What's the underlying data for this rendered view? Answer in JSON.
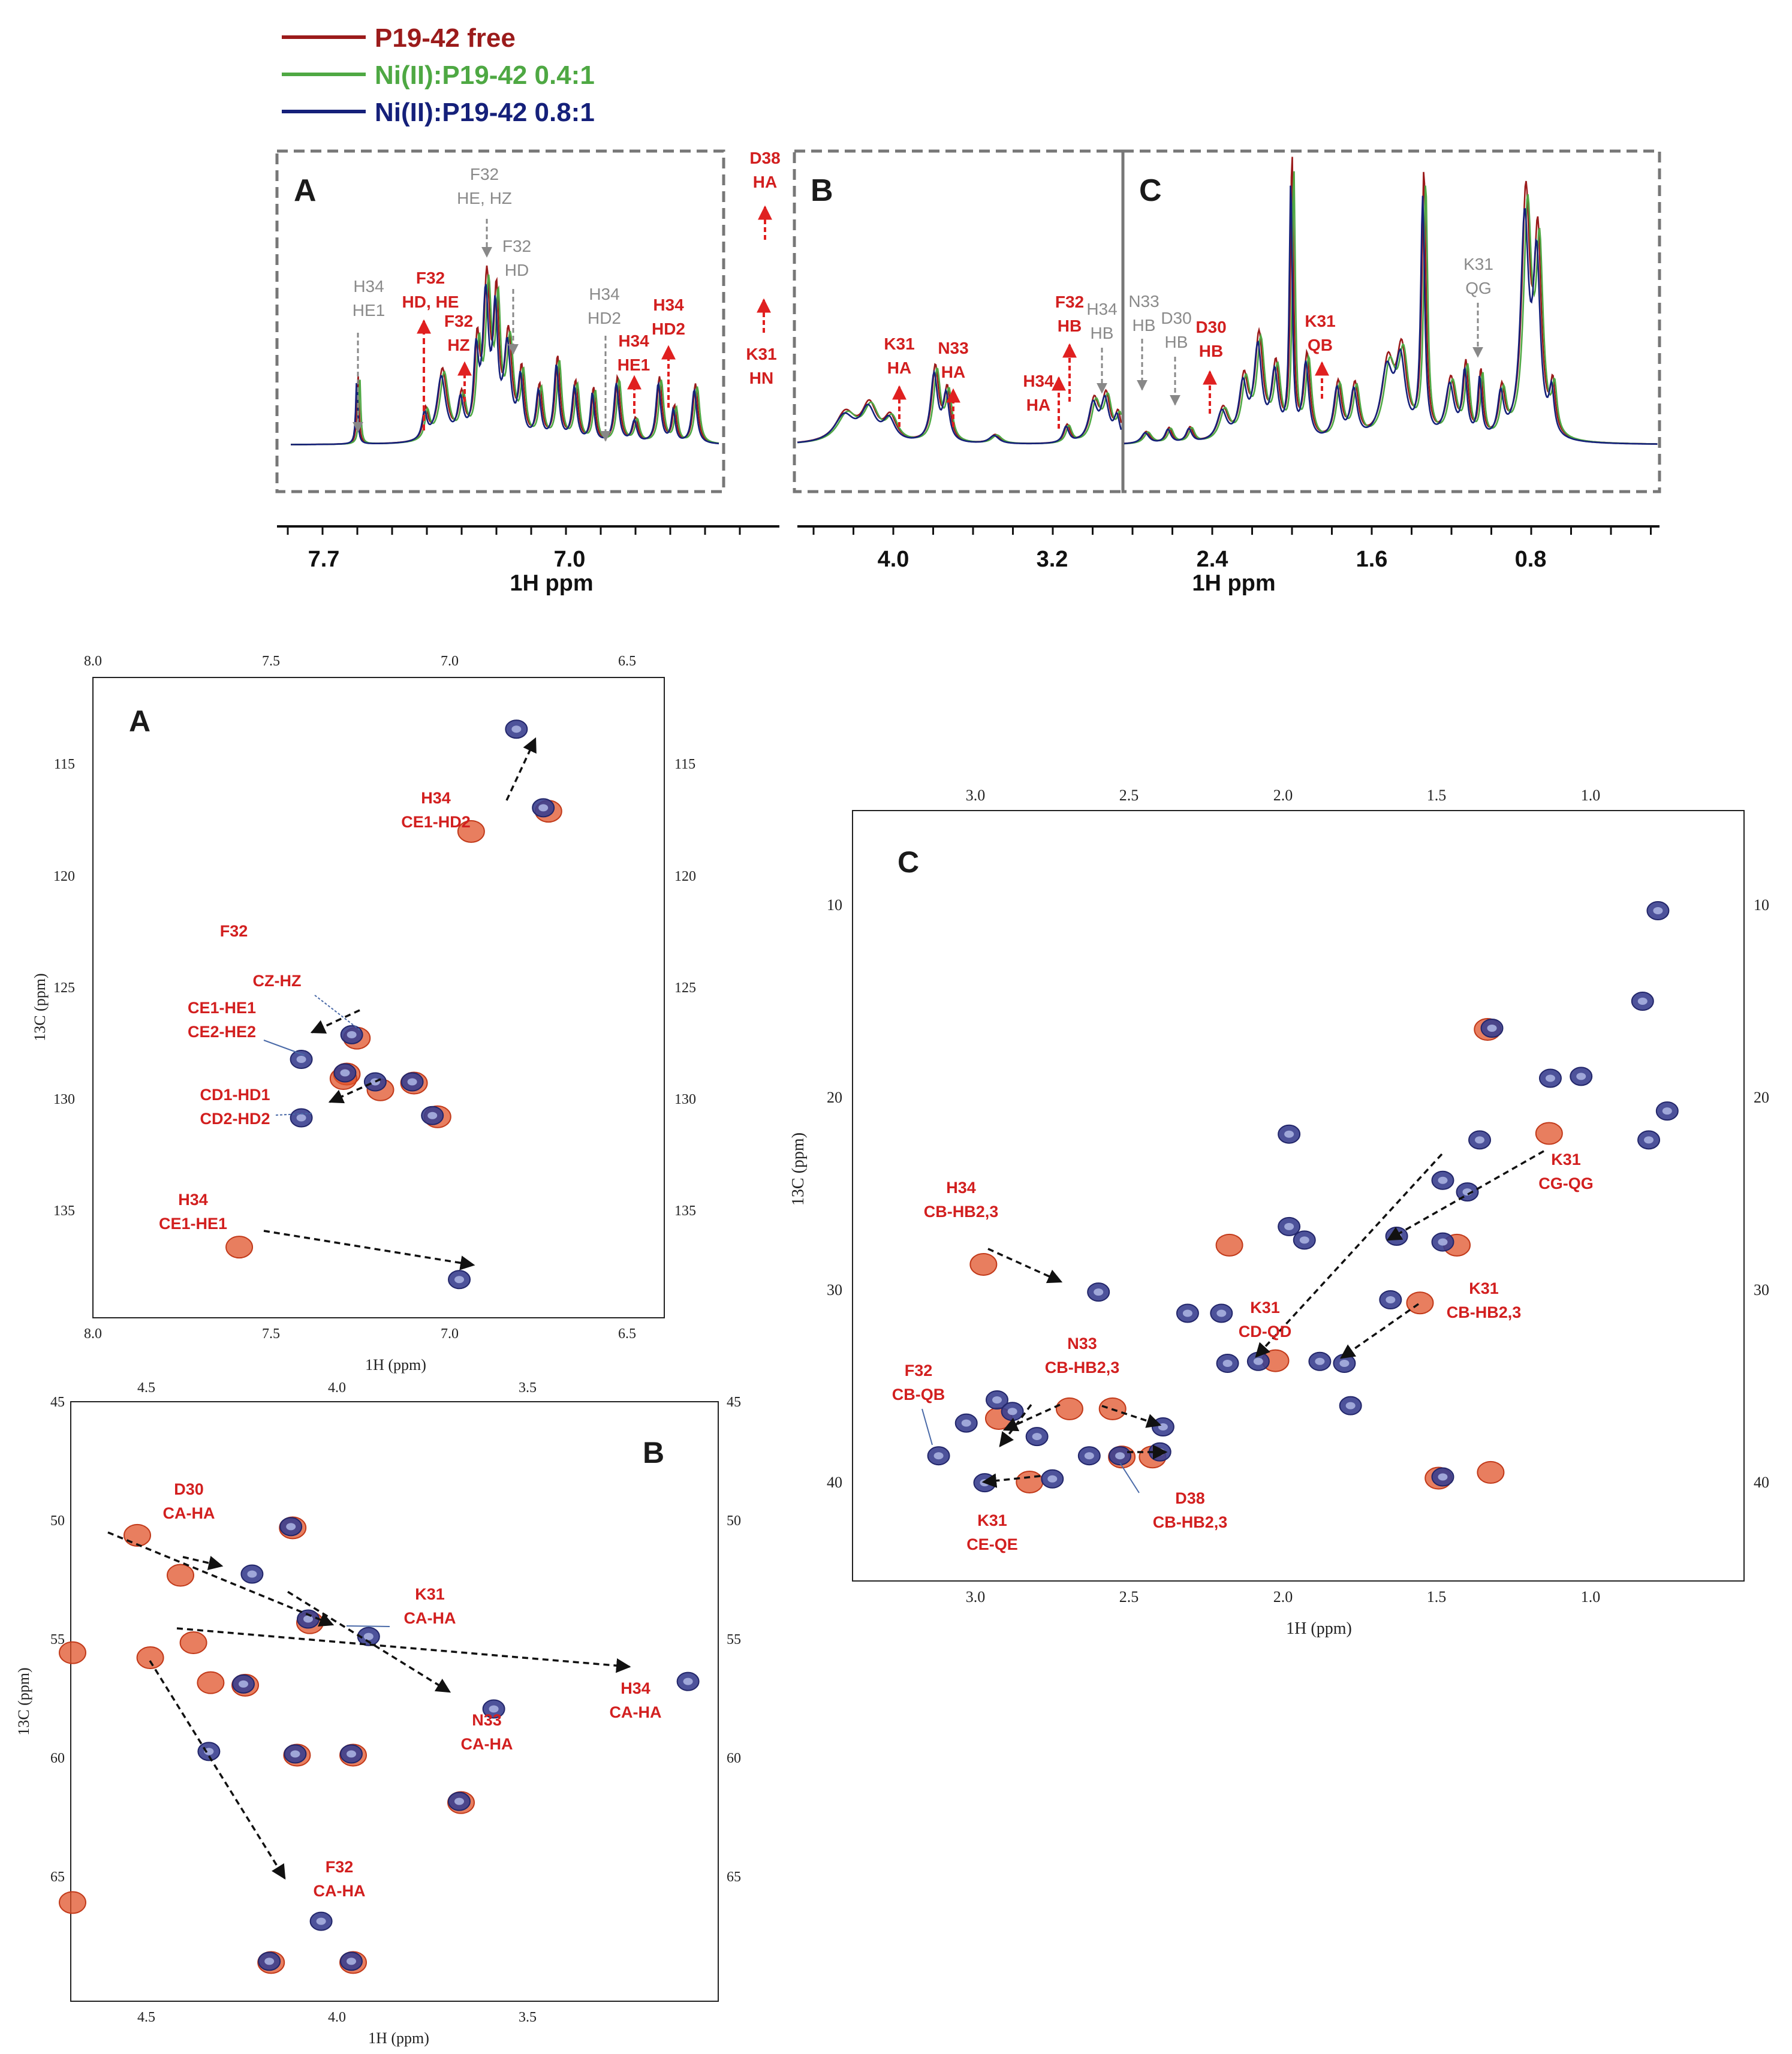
{
  "legend": [
    {
      "name": "P19-42 free",
      "color": "#9b1b1b"
    },
    {
      "name": "Ni(II):P19-42 0.4:1",
      "color": "#4ea843"
    },
    {
      "name": "Ni(II):P19-42 0.8:1",
      "color": "#15207a"
    }
  ],
  "colors": {
    "free_contour": "#e0532a",
    "bound_contour": "#3a3f8f",
    "label_red": "#d21f1f",
    "label_grey": "#8a8a8a"
  },
  "chart_data": [
    {
      "type": "line",
      "panel": "1D 1H spectrum",
      "xlabel": "1H ppm",
      "xticks_left": [
        "7.7",
        "7.0"
      ],
      "xticks_right": [
        "4.0",
        "3.2",
        "2.4",
        "1.6",
        "0.8"
      ],
      "regions": [
        "A",
        "B",
        "C"
      ],
      "annotations": [
        {
          "text": [
            "H34",
            "HE1"
          ],
          "color": "grey",
          "x": 7.62
        },
        {
          "text": [
            "F32",
            "HE, HZ"
          ],
          "color": "grey",
          "x": 7.25
        },
        {
          "text": [
            "F32",
            "HD"
          ],
          "color": "grey",
          "x": 7.15
        },
        {
          "text": [
            "H34",
            "HD2"
          ],
          "color": "grey",
          "x": 6.86
        },
        {
          "text": [
            "F32",
            "HD, HE"
          ],
          "color": "red",
          "x": 7.45
        },
        {
          "text": [
            "F32",
            "HZ"
          ],
          "color": "red",
          "x": 7.37
        },
        {
          "text": [
            "H34",
            "HE1"
          ],
          "color": "red",
          "x": 6.8
        },
        {
          "text": [
            "H34",
            "HD2"
          ],
          "color": "red",
          "x": 6.72
        },
        {
          "text": [
            "D38",
            "HA"
          ],
          "color": "red",
          "x": 6.45
        },
        {
          "text": [
            "K31",
            "HN"
          ],
          "color": "red",
          "x": 6.45
        },
        {
          "text": [
            "K31",
            "HA"
          ],
          "color": "red",
          "x": 3.98
        },
        {
          "text": [
            "N33",
            "HA"
          ],
          "color": "red",
          "x": 3.7
        },
        {
          "text": [
            "H34",
            "HA"
          ],
          "color": "red",
          "x": 3.15
        },
        {
          "text": [
            "F32",
            "HB"
          ],
          "color": "red",
          "x": 3.1
        },
        {
          "text": [
            "H34",
            "HB"
          ],
          "color": "grey",
          "x": 2.95
        },
        {
          "text": [
            "N33",
            "HB"
          ],
          "color": "grey",
          "x": 2.72
        },
        {
          "text": [
            "D30",
            "HB"
          ],
          "color": "grey",
          "x": 2.55
        },
        {
          "text": [
            "D30",
            "HB"
          ],
          "color": "red",
          "x": 2.4
        },
        {
          "text": [
            "K31",
            "QB"
          ],
          "color": "red",
          "x": 1.78
        },
        {
          "text": [
            "K31",
            "QG"
          ],
          "color": "grey",
          "x": 1.02
        }
      ]
    },
    {
      "type": "scatter",
      "panel": "A",
      "xlabel": "1H (ppm)",
      "ylabel": "13C (ppm)",
      "xlim": [
        8.0,
        6.3
      ],
      "ylim": [
        111.0,
        139.5
      ],
      "xticks": [
        "8.0",
        "7.5",
        "7.0",
        "6.5"
      ],
      "yticks": [
        "115",
        "120",
        "125",
        "130",
        "135"
      ],
      "labels": [
        {
          "lines": [
            "H34",
            "CE1-HD2"
          ]
        },
        {
          "lines": [
            "F32"
          ]
        },
        {
          "lines": [
            "CZ-HZ"
          ]
        },
        {
          "lines": [
            "CE1-HE1",
            "CE2-HE2"
          ]
        },
        {
          "lines": [
            "CD1-HD1",
            "CD2-HD2"
          ]
        },
        {
          "lines": [
            "H34",
            "CE1-HE1"
          ]
        }
      ],
      "peaks_free": [
        [
          6.88,
          117.8
        ],
        [
          6.65,
          116.9
        ],
        [
          7.22,
          127.0
        ],
        [
          7.25,
          128.6
        ],
        [
          7.15,
          129.3
        ],
        [
          7.05,
          129.0
        ],
        [
          6.98,
          130.5
        ],
        [
          7.57,
          136.3
        ],
        [
          7.26,
          128.8
        ]
      ],
      "peaks_bound": [
        [
          6.74,
          113.3
        ],
        [
          6.66,
          116.8
        ],
        [
          7.23,
          126.9
        ],
        [
          7.38,
          128.0
        ],
        [
          7.25,
          128.6
        ],
        [
          7.16,
          129.0
        ],
        [
          7.05,
          129.0
        ],
        [
          6.99,
          130.5
        ],
        [
          7.38,
          130.6
        ],
        [
          6.91,
          137.8
        ]
      ]
    },
    {
      "type": "scatter",
      "panel": "B",
      "xlabel": "1H (ppm)",
      "ylabel": "13C (ppm)",
      "xlim": [
        4.7,
        3.2
      ],
      "ylim": [
        45,
        69
      ],
      "xticks": [
        "4.5",
        "4.0",
        "3.5"
      ],
      "yticks": [
        "45",
        "50",
        "55",
        "60",
        "65"
      ],
      "labels": [
        {
          "lines": [
            "D30",
            "CA-HA"
          ]
        },
        {
          "lines": [
            "K31",
            "CA-HA"
          ]
        },
        {
          "lines": [
            "H34",
            "CA-HA"
          ]
        },
        {
          "lines": [
            "N33",
            "CA-HA"
          ]
        },
        {
          "lines": [
            "F32",
            "CA-HA"
          ]
        }
      ],
      "peaks_free": [
        [
          4.45,
          51.9
        ],
        [
          4.42,
          54.6
        ],
        [
          4.52,
          55.2
        ],
        [
          4.55,
          50.3
        ],
        [
          4.19,
          50.0
        ],
        [
          4.15,
          53.8
        ],
        [
          4.3,
          56.3
        ],
        [
          4.38,
          56.2
        ],
        [
          4.18,
          59.1
        ],
        [
          4.05,
          59.1
        ],
        [
          3.8,
          61.0
        ],
        [
          4.24,
          67.4
        ],
        [
          4.05,
          67.4
        ],
        [
          4.7,
          55.0
        ],
        [
          4.7,
          65.0
        ]
      ],
      "peaks_bound": [
        [
          4.28,
          51.9
        ],
        [
          4.01,
          54.4
        ],
        [
          3.27,
          56.2
        ],
        [
          3.72,
          57.3
        ],
        [
          4.12,
          65.8
        ],
        [
          4.19,
          50.0
        ],
        [
          4.15,
          53.7
        ],
        [
          4.3,
          56.3
        ],
        [
          4.38,
          59.0
        ],
        [
          4.18,
          59.1
        ],
        [
          4.05,
          59.1
        ],
        [
          3.8,
          61.0
        ],
        [
          4.24,
          67.4
        ],
        [
          4.05,
          67.4
        ]
      ]
    },
    {
      "type": "scatter",
      "panel": "C",
      "xlabel": "1H (ppm)",
      "ylabel": "13C (ppm)",
      "xlim": [
        3.42,
        0.52
      ],
      "ylim": [
        5,
        45
      ],
      "xticks": [
        "3.0",
        "2.5",
        "2.0",
        "1.5",
        "1.0"
      ],
      "yticks": [
        "10",
        "20",
        "30",
        "40"
      ],
      "labels": [
        {
          "lines": [
            "H34",
            "CB-HB2,3"
          ]
        },
        {
          "lines": [
            "N33",
            "CB-HB2,3"
          ]
        },
        {
          "lines": [
            "F32",
            "CB-QB"
          ]
        },
        {
          "lines": [
            "K31",
            "CE-QE"
          ]
        },
        {
          "lines": [
            "D38",
            "CB-HB2,3"
          ]
        },
        {
          "lines": [
            "K31",
            "CD-QD"
          ]
        },
        {
          "lines": [
            "K31",
            "CB-HB2,3"
          ]
        },
        {
          "lines": [
            "K31",
            "CG-QG"
          ]
        }
      ],
      "peaks_free": [
        [
          3.0,
          28.5
        ],
        [
          2.72,
          36.0
        ],
        [
          2.58,
          36.0
        ],
        [
          2.85,
          39.8
        ],
        [
          2.2,
          27.5
        ],
        [
          2.05,
          33.5
        ],
        [
          1.58,
          30.5
        ],
        [
          1.46,
          27.5
        ],
        [
          1.16,
          21.7
        ],
        [
          1.36,
          16.3
        ],
        [
          1.52,
          39.6
        ],
        [
          1.35,
          39.3
        ],
        [
          2.55,
          38.5
        ],
        [
          2.45,
          38.5
        ],
        [
          2.95,
          36.5
        ]
      ],
      "peaks_bound": [
        [
          0.8,
          10.2
        ],
        [
          0.85,
          14.9
        ],
        [
          1.34,
          16.3
        ],
        [
          1.15,
          18.9
        ],
        [
          1.05,
          18.8
        ],
        [
          0.77,
          20.6
        ],
        [
          0.83,
          22.1
        ],
        [
          2.0,
          21.8
        ],
        [
          1.38,
          22.1
        ],
        [
          1.5,
          24.2
        ],
        [
          1.42,
          24.8
        ],
        [
          2.0,
          26.6
        ],
        [
          1.95,
          27.3
        ],
        [
          1.5,
          27.4
        ],
        [
          1.65,
          27.1
        ],
        [
          1.67,
          30.4
        ],
        [
          2.33,
          31.1
        ],
        [
          2.22,
          31.1
        ],
        [
          2.2,
          33.7
        ],
        [
          2.1,
          33.6
        ],
        [
          1.9,
          33.6
        ],
        [
          1.82,
          33.7
        ],
        [
          1.8,
          35.9
        ],
        [
          2.95,
          35.6
        ],
        [
          3.05,
          36.8
        ],
        [
          2.9,
          36.2
        ],
        [
          2.82,
          37.5
        ],
        [
          3.14,
          38.5
        ],
        [
          2.99,
          39.9
        ],
        [
          2.77,
          39.7
        ],
        [
          2.55,
          38.5
        ],
        [
          2.42,
          38.3
        ],
        [
          2.41,
          37.0
        ],
        [
          2.62,
          30.0
        ],
        [
          1.5,
          39.6
        ],
        [
          2.65,
          38.5
        ]
      ]
    }
  ]
}
